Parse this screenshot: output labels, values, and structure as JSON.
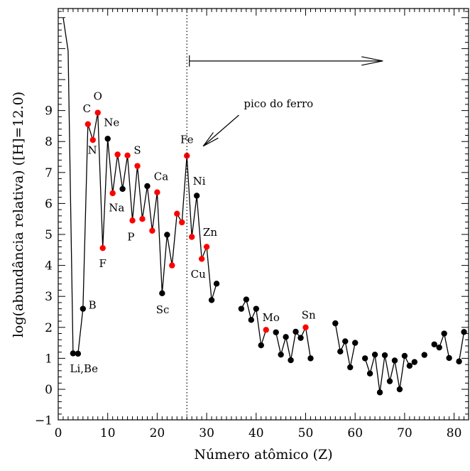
{
  "chart_data": {
    "type": "scatter",
    "xlabel": "Número atômico (Z)",
    "ylabel": "log(abundância relativa)  ([H]=12.0)",
    "xlim": [
      0,
      83
    ],
    "ylim": [
      -1,
      12.4
    ],
    "xticks": [
      "0",
      "10",
      "20",
      "30",
      "40",
      "50",
      "60",
      "70",
      "80"
    ],
    "yticks": [
      "−1",
      "0",
      "1",
      "2",
      "3",
      "4",
      "5",
      "6",
      "7",
      "8",
      "9"
    ],
    "grid": false,
    "colors": {
      "black": "#000000",
      "red": "#ff0000"
    },
    "iron_line_x": 26,
    "leading_curve": [
      [
        1,
        12.0
      ],
      [
        2,
        10.93
      ],
      [
        3,
        1.16
      ]
    ],
    "segments": [
      [
        [
          3,
          1.16,
          "black"
        ],
        [
          4,
          1.15,
          "black"
        ],
        [
          5,
          2.6,
          "black"
        ],
        [
          6,
          8.56,
          "red"
        ],
        [
          7,
          8.05,
          "red"
        ],
        [
          8,
          8.93,
          "red"
        ],
        [
          9,
          4.56,
          "red"
        ],
        [
          10,
          8.09,
          "black"
        ],
        [
          11,
          6.33,
          "red"
        ],
        [
          12,
          7.58,
          "red"
        ],
        [
          13,
          6.47,
          "black"
        ],
        [
          14,
          7.55,
          "red"
        ],
        [
          15,
          5.45,
          "red"
        ],
        [
          16,
          7.21,
          "red"
        ],
        [
          17,
          5.5,
          "red"
        ],
        [
          18,
          6.56,
          "black"
        ],
        [
          19,
          5.12,
          "red"
        ],
        [
          20,
          6.36,
          "red"
        ],
        [
          21,
          3.1,
          "black"
        ],
        [
          22,
          4.99,
          "black"
        ],
        [
          23,
          4.0,
          "red"
        ],
        [
          24,
          5.67,
          "red"
        ],
        [
          25,
          5.39,
          "red"
        ],
        [
          26,
          7.54,
          "red"
        ],
        [
          27,
          4.92,
          "red"
        ],
        [
          28,
          6.25,
          "black"
        ],
        [
          29,
          4.21,
          "red"
        ],
        [
          30,
          4.6,
          "red"
        ],
        [
          31,
          2.88,
          "black"
        ],
        [
          32,
          3.41,
          "black"
        ]
      ],
      [
        [
          37,
          2.6,
          "black"
        ],
        [
          38,
          2.9,
          "black"
        ],
        [
          39,
          2.24,
          "black"
        ],
        [
          40,
          2.6,
          "black"
        ],
        [
          41,
          1.42,
          "black"
        ],
        [
          42,
          1.92,
          "red"
        ]
      ],
      [
        [
          44,
          1.84,
          "black"
        ],
        [
          45,
          1.12,
          "black"
        ],
        [
          46,
          1.69,
          "black"
        ],
        [
          47,
          0.94,
          "black"
        ],
        [
          48,
          1.86,
          "black"
        ],
        [
          49,
          1.66,
          "black"
        ],
        [
          50,
          2.0,
          "red"
        ],
        [
          51,
          1.0,
          "black"
        ]
      ],
      [
        [
          56,
          2.13,
          "black"
        ],
        [
          57,
          1.22,
          "black"
        ],
        [
          58,
          1.55,
          "black"
        ],
        [
          59,
          0.71,
          "black"
        ],
        [
          60,
          1.5,
          "black"
        ]
      ],
      [
        [
          62,
          1.0,
          "black"
        ],
        [
          63,
          0.51,
          "black"
        ],
        [
          64,
          1.12,
          "black"
        ],
        [
          65,
          -0.1,
          "black"
        ],
        [
          66,
          1.1,
          "black"
        ],
        [
          67,
          0.26,
          "black"
        ],
        [
          68,
          0.93,
          "black"
        ],
        [
          69,
          0.0,
          "black"
        ],
        [
          70,
          1.08,
          "black"
        ],
        [
          71,
          0.76,
          "black"
        ],
        [
          72,
          0.88,
          "black"
        ]
      ],
      [
        [
          74,
          1.11,
          "black"
        ]
      ],
      [
        [
          76,
          1.45,
          "black"
        ],
        [
          77,
          1.35,
          "black"
        ],
        [
          78,
          1.8,
          "black"
        ],
        [
          79,
          1.01,
          "black"
        ]
      ],
      [
        [
          81,
          0.9,
          "black"
        ],
        [
          82,
          1.85,
          "black"
        ]
      ]
    ],
    "element_labels": [
      {
        "text": "Li,Be",
        "x": 5.2,
        "y": 0.55
      },
      {
        "text": "B",
        "x": 6.9,
        "y": 2.6
      },
      {
        "text": "C",
        "x": 5.8,
        "y": 8.95
      },
      {
        "text": "O",
        "x": 8.0,
        "y": 9.35
      },
      {
        "text": "N",
        "x": 6.9,
        "y": 7.6
      },
      {
        "text": "Ne",
        "x": 10.8,
        "y": 8.5
      },
      {
        "text": "Na",
        "x": 11.8,
        "y": 5.75
      },
      {
        "text": "S",
        "x": 16.0,
        "y": 7.6
      },
      {
        "text": "Ca",
        "x": 20.8,
        "y": 6.75
      },
      {
        "text": "F",
        "x": 9.0,
        "y": 3.95
      },
      {
        "text": "P",
        "x": 14.7,
        "y": 4.8
      },
      {
        "text": "Fe",
        "x": 26.0,
        "y": 7.95
      },
      {
        "text": "Ni",
        "x": 28.5,
        "y": 6.6
      },
      {
        "text": "Zn",
        "x": 30.7,
        "y": 4.95
      },
      {
        "text": "Cu",
        "x": 28.3,
        "y": 3.6
      },
      {
        "text": "Sc",
        "x": 21.1,
        "y": 2.45
      },
      {
        "text": "Mo",
        "x": 43.0,
        "y": 2.2
      },
      {
        "text": "Sn",
        "x": 50.6,
        "y": 2.28
      }
    ],
    "annotation": {
      "text": "pico do ferro",
      "text_x": 37.5,
      "text_y": 9.1,
      "arrow_from": [
        36.5,
        8.85
      ],
      "arrow_to": [
        29.3,
        7.85
      ]
    },
    "range_arrow": {
      "from": 26.5,
      "to": 65.6,
      "y": 10.6
    }
  }
}
